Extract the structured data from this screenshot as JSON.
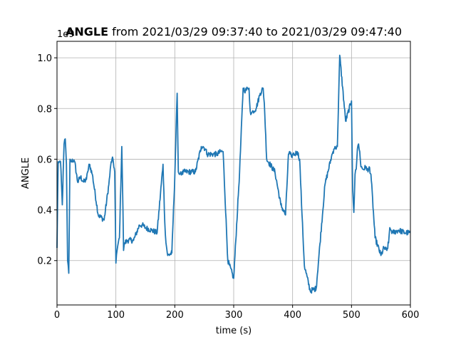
{
  "chart_data": {
    "type": "line",
    "title_bold": "ANGLE",
    "title_rest": " from 2021/03/29 09:37:40 to 2021/03/29 09:47:40",
    "offset_label": "1e9",
    "xlabel": "time (s)",
    "ylabel": "ANGLE",
    "xlim": [
      0,
      600
    ],
    "ylim": [
      0.025,
      1.065
    ],
    "xticks": [
      0,
      100,
      200,
      300,
      400,
      500,
      600
    ],
    "yticks": [
      0.2,
      0.4,
      0.6,
      0.8,
      1.0
    ],
    "ytick_labels": [
      "0.2",
      "0.4",
      "0.6",
      "0.8",
      "1.0"
    ],
    "grid": true,
    "line_color": "#1f77b4",
    "series": [
      {
        "x": [
          0,
          2,
          4,
          6,
          9,
          12,
          14,
          16,
          18,
          20,
          22,
          24,
          26,
          28,
          30,
          35,
          40,
          45,
          50,
          52,
          55,
          60,
          70,
          80,
          88,
          92,
          95,
          98,
          100,
          102,
          104,
          106,
          110,
          112,
          113,
          115,
          120,
          130,
          140,
          145,
          150,
          160,
          170,
          180,
          183,
          185,
          188,
          195,
          200,
          204,
          206,
          208,
          210,
          212,
          215,
          220,
          235,
          245,
          248,
          252,
          255,
          265,
          272,
          278,
          282,
          290,
          300,
          310,
          316,
          320,
          324,
          326,
          328,
          330,
          333,
          338,
          345,
          350,
          352,
          356,
          370,
          380,
          388,
          393,
          396,
          398,
          400,
          404,
          408,
          412,
          416,
          420,
          430,
          440,
          455,
          466,
          470,
          472,
          474,
          476,
          480,
          490,
          500,
          502,
          504,
          506,
          508,
          510,
          512,
          514,
          516,
          520,
          525,
          528,
          530,
          533,
          540,
          550,
          555,
          560,
          563,
          565,
          567,
          570,
          580,
          590,
          600
        ],
        "y": [
          0.25,
          0.59,
          0.59,
          0.59,
          0.42,
          0.66,
          0.68,
          0.58,
          0.2,
          0.15,
          0.6,
          0.59,
          0.6,
          0.59,
          0.59,
          0.51,
          0.53,
          0.51,
          0.52,
          0.55,
          0.58,
          0.54,
          0.38,
          0.36,
          0.5,
          0.59,
          0.6,
          0.55,
          0.19,
          0.24,
          0.27,
          0.29,
          0.65,
          0.4,
          0.24,
          0.27,
          0.28,
          0.28,
          0.34,
          0.34,
          0.33,
          0.32,
          0.31,
          0.58,
          0.35,
          0.27,
          0.22,
          0.23,
          0.53,
          0.86,
          0.55,
          0.54,
          0.55,
          0.54,
          0.55,
          0.55,
          0.55,
          0.65,
          0.65,
          0.64,
          0.62,
          0.62,
          0.62,
          0.63,
          0.63,
          0.2,
          0.13,
          0.55,
          0.88,
          0.87,
          0.88,
          0.88,
          0.79,
          0.78,
          0.79,
          0.8,
          0.86,
          0.88,
          0.82,
          0.6,
          0.55,
          0.42,
          0.38,
          0.62,
          0.62,
          0.61,
          0.62,
          0.62,
          0.63,
          0.6,
          0.38,
          0.18,
          0.08,
          0.09,
          0.5,
          0.61,
          0.64,
          0.65,
          0.64,
          0.65,
          1.01,
          0.75,
          0.83,
          0.48,
          0.39,
          0.54,
          0.56,
          0.64,
          0.66,
          0.63,
          0.57,
          0.56,
          0.57,
          0.55,
          0.57,
          0.54,
          0.29,
          0.22,
          0.25,
          0.24,
          0.27,
          0.33,
          0.32,
          0.31,
          0.32,
          0.31,
          0.31
        ]
      }
    ]
  }
}
